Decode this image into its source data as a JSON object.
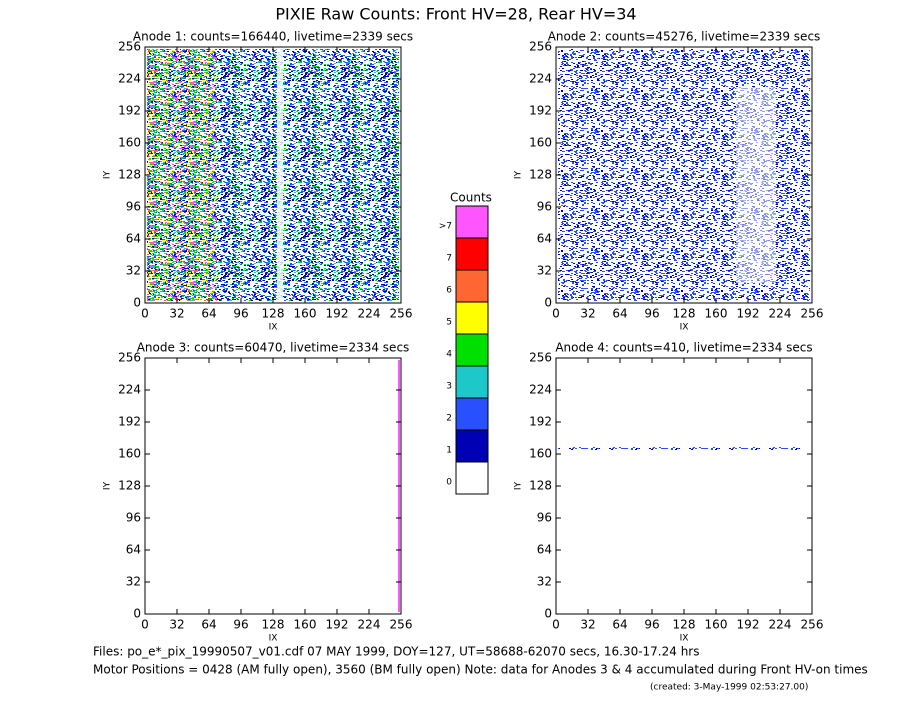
{
  "title": "PIXIE Raw Counts:  Front HV=28, Rear HV=34",
  "chart_data": [
    {
      "type": "heatmap",
      "title": "Anode 1: counts=166440, livetime=2339 secs",
      "xlabel": "IX",
      "ylabel": "IY",
      "xlim": [
        0,
        256
      ],
      "ylim": [
        0,
        256
      ],
      "xticks": [
        0,
        32,
        64,
        96,
        128,
        160,
        192,
        224,
        256
      ],
      "yticks": [
        0,
        32,
        64,
        96,
        128,
        160,
        192,
        224,
        256
      ]
    },
    {
      "type": "heatmap",
      "title": "Anode 2: counts=45276, livetime=2339 secs",
      "xlabel": "IX",
      "ylabel": "IY",
      "xlim": [
        0,
        256
      ],
      "ylim": [
        0,
        256
      ],
      "xticks": [
        0,
        32,
        64,
        96,
        128,
        160,
        192,
        224,
        256
      ],
      "yticks": [
        0,
        32,
        64,
        96,
        128,
        160,
        192,
        224,
        256
      ]
    },
    {
      "type": "heatmap",
      "title": "Anode 3: counts=60470, livetime=2334 secs",
      "xlabel": "IX",
      "ylabel": "IY",
      "xlim": [
        0,
        256
      ],
      "ylim": [
        0,
        256
      ],
      "xticks": [
        0,
        32,
        64,
        96,
        128,
        160,
        192,
        224,
        256
      ],
      "yticks": [
        0,
        32,
        64,
        96,
        128,
        160,
        192,
        224,
        256
      ]
    },
    {
      "type": "heatmap",
      "title": "Anode 4: counts=410, livetime=2334 secs",
      "xlabel": "IX",
      "ylabel": "IY",
      "xlim": [
        0,
        256
      ],
      "ylim": [
        0,
        256
      ],
      "xticks": [
        0,
        32,
        64,
        96,
        128,
        160,
        192,
        224,
        256
      ],
      "yticks": [
        0,
        32,
        64,
        96,
        128,
        160,
        192,
        224,
        256
      ]
    }
  ],
  "colorbar": {
    "title": "Counts",
    "levels": [
      "0",
      "1",
      "2",
      "3",
      "4",
      "5",
      "6",
      "7",
      ">7"
    ],
    "colors": [
      "#ffffff",
      "#0000b4",
      "#2850ff",
      "#1ec8c8",
      "#00e000",
      "#ffff00",
      "#ff6632",
      "#ff0000",
      "#ff55ff"
    ]
  },
  "footer": {
    "files": "Files: po_e*_pix_19990507_v01.cdf    07 MAY 1999, DOY=127, UT=58688-62070 secs, 16.30-17.24 hrs",
    "motor": "Motor Positions = 0428 (AM fully open), 3560 (BM fully open)    Note: data for Anodes 3 & 4 accumulated during Front HV-on times",
    "created": "(created:  3-May-1999 02:53:27.00)"
  }
}
